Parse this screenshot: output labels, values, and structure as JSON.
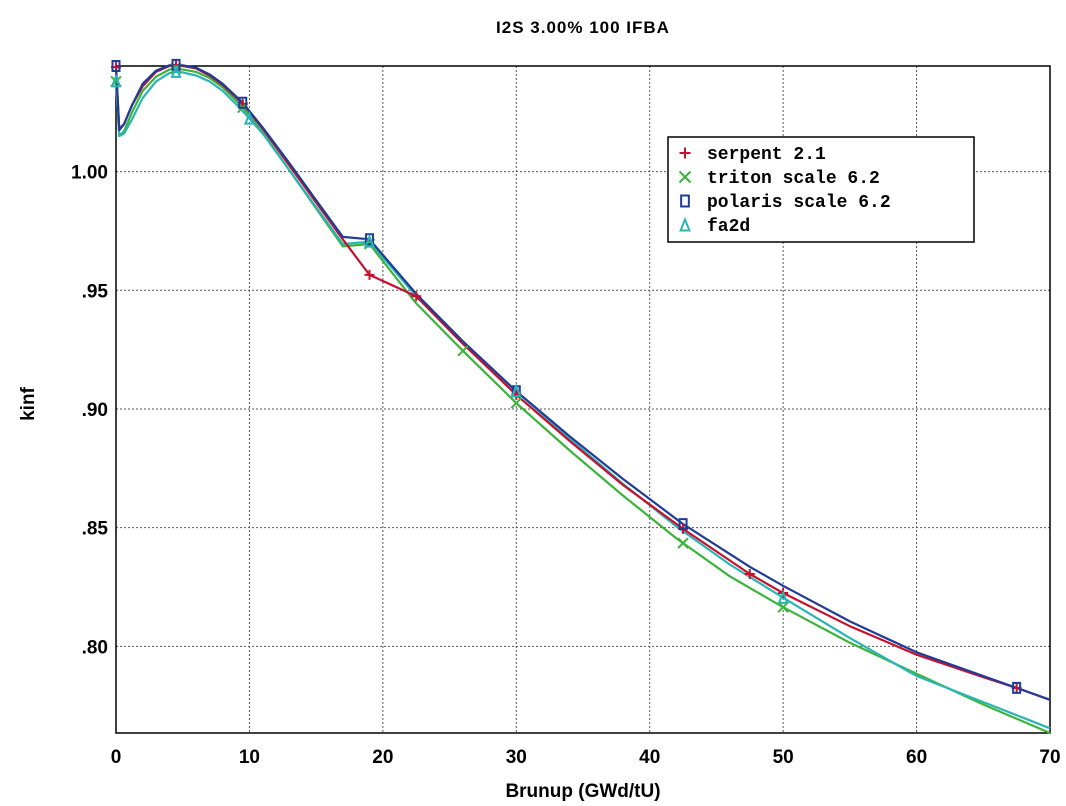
{
  "chart_data": {
    "type": "line",
    "title": "I2S 3.00% 100 IFBA",
    "xlabel": "Brunup (GWd/tU)",
    "ylabel": "kinf",
    "xlim": [
      0,
      70
    ],
    "ylim": [
      0.7635,
      1.0445
    ],
    "x_ticks": [
      0,
      10,
      20,
      30,
      40,
      50,
      60,
      70
    ],
    "x_tick_labels": [
      "0",
      "10",
      "20",
      "30",
      "40",
      "50",
      "60",
      "70"
    ],
    "y_ticks": [
      0.8,
      0.85,
      0.9,
      0.95,
      1.0
    ],
    "y_tick_labels": [
      ".80",
      ".85",
      ".90",
      ".95",
      "1.00"
    ],
    "grid": true,
    "legend_position": "top-right",
    "series": [
      {
        "name": "serpent 2.1",
        "color": "#c8102e",
        "marker": "plus",
        "x": [
          0,
          0.25,
          0.6,
          1.2,
          2,
          3,
          4,
          4.5,
          5,
          6,
          7,
          8,
          9.5,
          11,
          13,
          15,
          17,
          19,
          22.5,
          26,
          30,
          34,
          38,
          42.5,
          47.5,
          50,
          55,
          60,
          65,
          67.5,
          70
        ],
        "y": [
          1.044,
          1.018,
          1.02,
          1.028,
          1.036,
          1.042,
          1.0445,
          1.0448,
          1.0445,
          1.0435,
          1.0405,
          1.0365,
          1.0285,
          1.018,
          1.0025,
          0.987,
          0.9715,
          0.9565,
          0.9475,
          0.9275,
          0.906,
          0.8865,
          0.868,
          0.8495,
          0.8305,
          0.8225,
          0.8085,
          0.7965,
          0.787,
          0.7825,
          0.7775
        ],
        "marker_x": [
          0,
          4.5,
          9.5,
          19,
          22.5,
          30,
          42.5,
          47.5,
          50,
          67.5
        ]
      },
      {
        "name": "triton scale 6.2",
        "color": "#3cb43c",
        "marker": "x",
        "x": [
          0,
          0.25,
          0.6,
          1.2,
          2,
          3,
          4,
          4.5,
          5,
          6,
          7,
          8,
          9.5,
          11,
          13,
          15,
          17,
          19,
          22.5,
          26,
          30,
          34,
          38,
          42,
          46,
          50,
          55,
          60,
          65,
          70
        ],
        "y": [
          1.038,
          1.015,
          1.017,
          1.025,
          1.034,
          1.04,
          1.043,
          1.0435,
          1.043,
          1.042,
          1.0395,
          1.0355,
          1.027,
          1.0165,
          1.0005,
          0.9845,
          0.9685,
          0.9695,
          0.9445,
          0.9245,
          0.9025,
          0.8825,
          0.8635,
          0.8455,
          0.8295,
          0.8165,
          0.8015,
          0.7885,
          0.7755,
          0.7635
        ],
        "marker_x": [
          0,
          4.5,
          9.5,
          19,
          26,
          30,
          42.5,
          50
        ]
      },
      {
        "name": "polaris scale 6.2",
        "color": "#1f3c98",
        "marker": "square",
        "x": [
          0,
          0.25,
          0.6,
          1.2,
          2,
          3,
          4,
          4.5,
          5,
          6,
          7,
          8,
          9.5,
          11,
          13,
          15,
          17,
          19,
          22.5,
          26,
          30,
          34,
          38,
          42.5,
          47.5,
          50,
          55,
          60,
          65,
          67.5,
          70
        ],
        "y": [
          1.0445,
          1.0175,
          1.02,
          1.028,
          1.037,
          1.0425,
          1.0448,
          1.045,
          1.0448,
          1.0438,
          1.041,
          1.037,
          1.029,
          1.0185,
          1.0035,
          0.988,
          0.9725,
          0.9715,
          0.9485,
          0.9285,
          0.9075,
          0.8885,
          0.8705,
          0.8515,
          0.8335,
          0.8255,
          0.8105,
          0.7975,
          0.7875,
          0.7825,
          0.7775
        ],
        "marker_x": [
          0,
          4.5,
          9.5,
          19,
          30,
          42.5,
          67.5
        ]
      },
      {
        "name": "fa2d",
        "color": "#2ab5b5",
        "marker": "triangle",
        "x": [
          0,
          0.25,
          0.6,
          1.2,
          2,
          3,
          4,
          4.5,
          5,
          6,
          7,
          8,
          9.5,
          11,
          13,
          15,
          17,
          19,
          22.5,
          26,
          30,
          34,
          38,
          42,
          46,
          50,
          55,
          60,
          65,
          70
        ],
        "y": [
          1.038,
          1.015,
          1.016,
          1.022,
          1.031,
          1.038,
          1.0415,
          1.042,
          1.0418,
          1.0405,
          1.038,
          1.034,
          1.0255,
          1.016,
          1.0005,
          0.985,
          0.9695,
          0.9705,
          0.9475,
          0.9275,
          0.9075,
          0.8875,
          0.8685,
          0.8505,
          0.8345,
          0.8205,
          0.8035,
          0.7875,
          0.7765,
          0.7655
        ],
        "marker_x": [
          0,
          4.5,
          10,
          19,
          30,
          50
        ]
      }
    ]
  }
}
